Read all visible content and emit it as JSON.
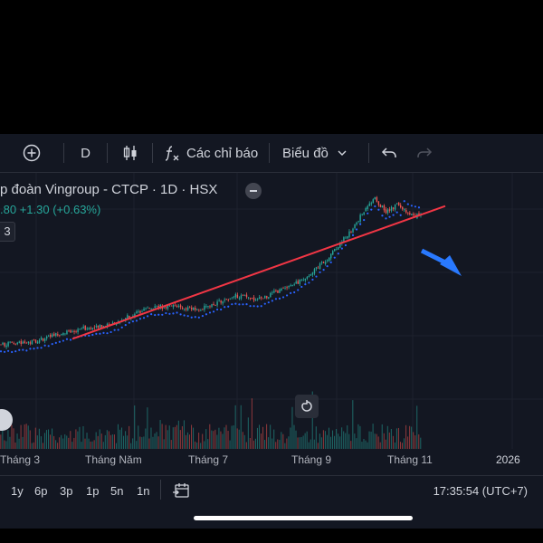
{
  "toolbar": {
    "interval": "D",
    "indicators_label": "Các chỉ báo",
    "chart_type_label": "Biểu đồ"
  },
  "legend": {
    "title": "p đoàn Vingroup - CTCP · 1D · HSX",
    "price_partial": ".80",
    "change": "+1.30 (+0.63%)",
    "badge": "3"
  },
  "colors": {
    "background": "#131722",
    "up": "#26a69a",
    "down": "#ef5350",
    "sar": "#2962ff",
    "trendline": "#f23645",
    "arrow": "#2979ff"
  },
  "time_axis": {
    "labels": [
      "Tháng 3",
      "Tháng Năm",
      "Tháng 7",
      "Tháng 9",
      "Tháng 11",
      "2026"
    ]
  },
  "ranges": [
    "1y",
    "6p",
    "3p",
    "1p",
    "5n",
    "1n"
  ],
  "clock": "17:35:54 (UTC+7)",
  "icons": {
    "add": "plus-circle-icon",
    "candles": "candlestick-icon",
    "fx": "function-icon",
    "chevron": "chevron-down-icon",
    "undo": "undo-icon",
    "redo": "redo-icon",
    "calendar": "calendar-goto-icon",
    "reset": "reset-icon",
    "collapse": "minus-circle-icon"
  },
  "chart_data": {
    "type": "candlestick",
    "indicators": [
      "parabolic_sar",
      "volume",
      "trendline"
    ],
    "note_on_values": "relative shape only; no price axis visible",
    "close_path": [
      20,
      21,
      22,
      24,
      27,
      31,
      34,
      37,
      38,
      40,
      44,
      50,
      55,
      60,
      60,
      62,
      58,
      56,
      62,
      66,
      72,
      70,
      68,
      72,
      78,
      82,
      90,
      100,
      110,
      125,
      140,
      158,
      175,
      160,
      168,
      158,
      155
    ]
  }
}
